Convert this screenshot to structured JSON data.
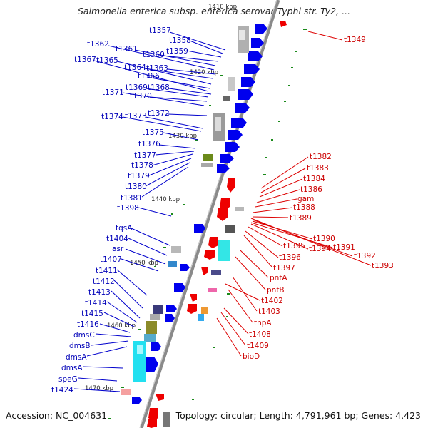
{
  "title": "Salmonella enterica subsp. enterica serovar Typhi str. Ty2, ...",
  "footer": {
    "accession": "Accession: NC_004631",
    "summary": "Topology: circular; Length: 4,791,961 bp; Genes: 4,423"
  },
  "scale_labels": [
    "1410 kbp",
    "1420 kbp",
    "1430 kbp",
    "1440 kbp",
    "1450 kbp",
    "1460 kbp",
    "1470 kbp"
  ],
  "left_genes": [
    "t1357",
    "t1358",
    "t1359",
    "t1360",
    "t1361",
    "t1362",
    "t1363",
    "t1364",
    "t1365",
    "t1366",
    "t1367",
    "t1368",
    "t1369",
    "t1370",
    "t1371",
    "t1372",
    "t1373",
    "t1374",
    "t1375",
    "t1376",
    "t1377",
    "t1378",
    "t1379",
    "t1380",
    "t1381",
    "t1398",
    "tqsA",
    "t1404",
    "asr",
    "t1407",
    "t1411",
    "t1412",
    "t1413",
    "t1414",
    "t1415",
    "t1416",
    "dmsC",
    "dmsB",
    "dmsA",
    "dmsA",
    "speG",
    "t1424"
  ],
  "right_genes": [
    "t1349",
    "t1382",
    "t1383",
    "t1384",
    "t1386",
    "gam",
    "t1388",
    "t1389",
    "t1390",
    "t1394",
    "t1391",
    "t1392",
    "t1393",
    "t1395",
    "t1396",
    "t1397",
    "pntA",
    "pntB",
    "t1402",
    "t1403",
    "tnpA",
    "t1408",
    "t1409",
    "bioD"
  ],
  "colors": {
    "forward": "#0000ee",
    "reverse": "#ee0000",
    "backbone": "#8a8a8a",
    "tick": "#1a8a1a"
  }
}
